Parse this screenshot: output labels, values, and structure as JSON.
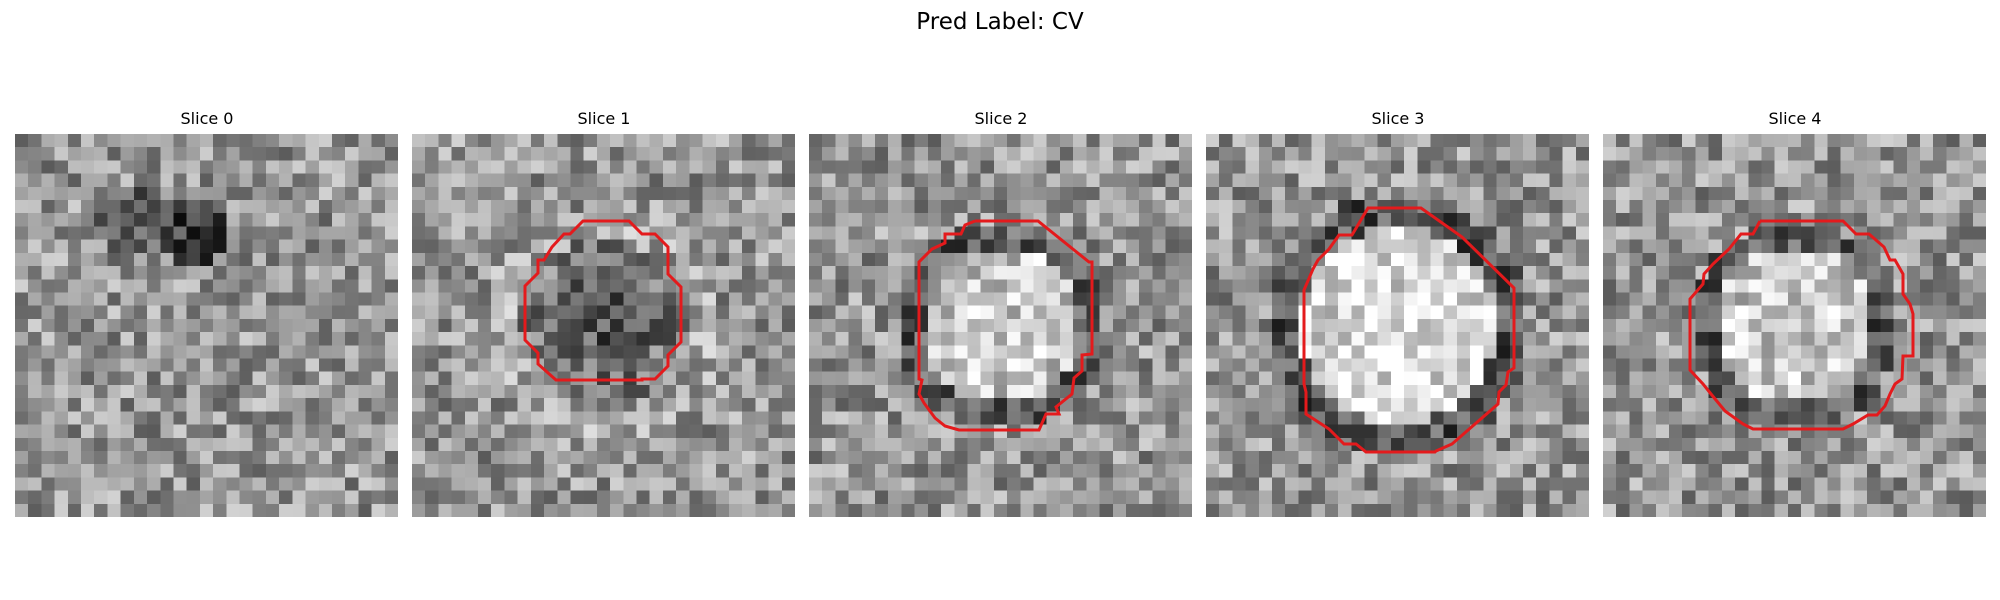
{
  "figure": {
    "title": "Pred Label: CV",
    "contour_color": "#e41a1c"
  },
  "slices": [
    {
      "title": "Slice 0",
      "blob": "dark-spot",
      "contour": false
    },
    {
      "title": "Slice 1",
      "blob": "dark",
      "contour": true
    },
    {
      "title": "Slice 2",
      "blob": "light",
      "contour": true
    },
    {
      "title": "Slice 3",
      "blob": "light-large",
      "contour": true
    },
    {
      "title": "Slice 4",
      "blob": "light",
      "contour": true
    }
  ]
}
